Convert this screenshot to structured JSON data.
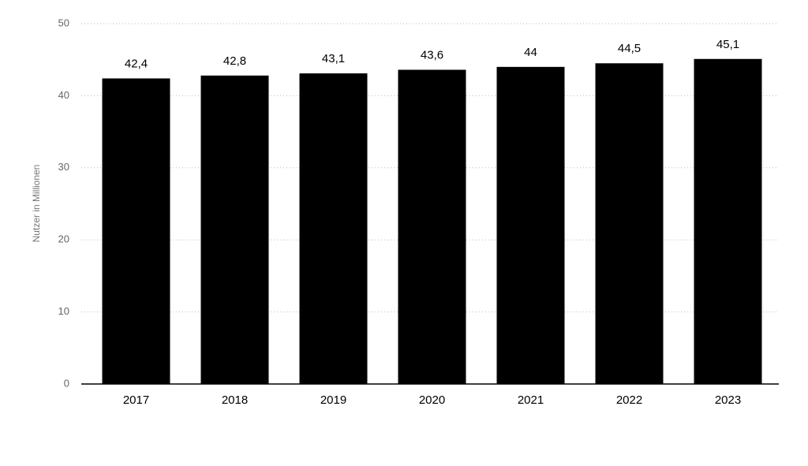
{
  "chart_data": {
    "type": "bar",
    "y_label": "Nutzer in Millionen",
    "categories": [
      "2017",
      "2018",
      "2019",
      "2020",
      "2021",
      "2022",
      "2023"
    ],
    "values": [
      42.4,
      42.8,
      43.1,
      43.6,
      44,
      44.5,
      45.1
    ],
    "value_labels": [
      "42,4",
      "42,8",
      "43,1",
      "43,6",
      "44",
      "44,5",
      "45,1"
    ],
    "color": "#000000",
    "ylim": [
      0,
      50
    ],
    "yticks": [
      0,
      10,
      20,
      30,
      40,
      50
    ],
    "grid": true
  }
}
